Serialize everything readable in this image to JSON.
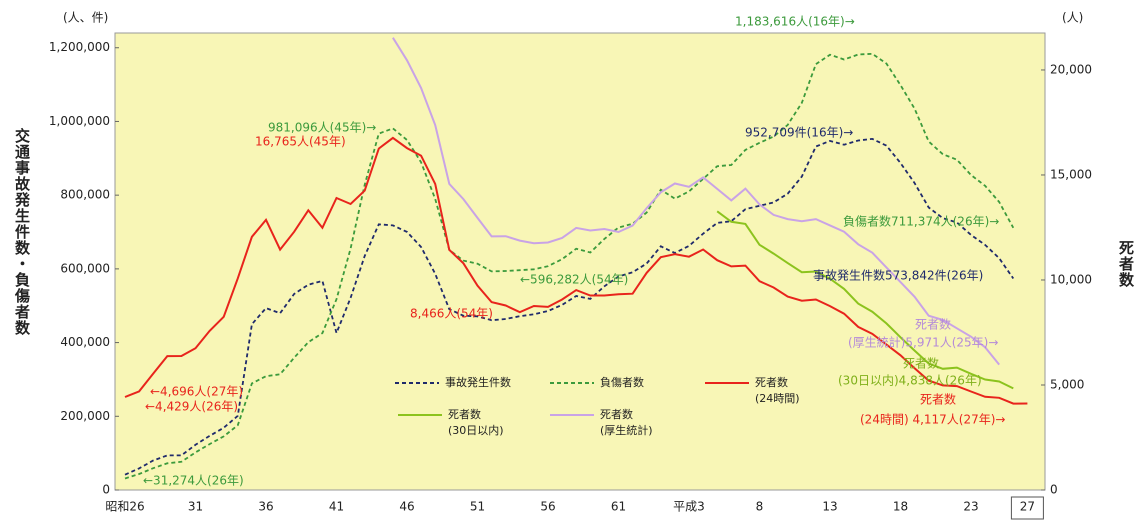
{
  "chart_data": {
    "type": "line",
    "y_unit_label": "(人、件)",
    "y2_unit_label": "(人)",
    "ylabel": "交通事故発生件数・負傷者数",
    "y2label": "死者数",
    "categories": [
      "昭和26",
      null,
      null,
      null,
      null,
      "31",
      null,
      null,
      null,
      null,
      "36",
      null,
      null,
      null,
      null,
      "41",
      null,
      null,
      null,
      null,
      "46",
      null,
      null,
      null,
      null,
      "51",
      null,
      null,
      null,
      null,
      "56",
      null,
      null,
      null,
      null,
      "61",
      null,
      null,
      null,
      null,
      "平成3",
      null,
      null,
      null,
      null,
      "8",
      null,
      null,
      null,
      null,
      "13",
      null,
      null,
      null,
      null,
      "18",
      null,
      null,
      null,
      null,
      "23",
      null,
      null,
      null,
      "27"
    ],
    "ylim": [
      0,
      1240000
    ],
    "yticks": [
      0,
      {
        "value": 200000,
        "label": "200,000"
      },
      {
        "value": 400000,
        "label": "400,000"
      },
      {
        "value": 600000,
        "label": "600,000"
      },
      {
        "value": 800000,
        "label": "800,000"
      },
      {
        "value": 1000000,
        "label": "1,000,000"
      },
      {
        "value": 1200000,
        "label": "1,200,000"
      }
    ],
    "y2lim": [
      0,
      21760
    ],
    "y2ticks": [
      0,
      {
        "value": 5000,
        "label": "5,000"
      },
      {
        "value": 10000,
        "label": "10,000"
      },
      {
        "value": 15000,
        "label": "15,000"
      },
      {
        "value": 20000,
        "label": "20,000"
      }
    ],
    "grid": false,
    "series": [
      {
        "name": "事故発生件数",
        "color": "#1f2a6b",
        "dash": true,
        "values": [
          41423,
          58487,
          80019,
          93869,
          93981,
          122691,
          146833,
          168799,
          201292,
          449917,
          493693,
          479825,
          531966,
          557183,
          567286,
          425944,
          521481,
          635056,
          720880,
          718080,
          700290,
          659283,
          586713,
          490452,
          472938,
          471041,
          460649,
          464037,
          471573,
          476677,
          485578,
          502261,
          526362,
          518642,
          552788,
          579190,
          590723,
          614481,
          661363,
          643097,
          662392,
          695345,
          724675,
          729461,
          761794,
          771085,
          780401,
          803882,
          850371,
          931950,
          947253,
          936950,
          948281,
          952709,
          934346,
          887267,
          832704,
          766394,
          737628,
          725924,
          692084,
          665157,
          629033,
          573842,
          null
        ]
      },
      {
        "name": "負傷者数",
        "color": "#3c9a3c",
        "dash": true,
        "values": [
          31274,
          43321,
          59280,
          72390,
          76501,
          102072,
          124530,
          145432,
          175951,
          289156,
          308697,
          313813,
          359089,
          401117,
          425666,
          517775,
          655377,
          828071,
          967000,
          981096,
          949689,
          889198,
          789948,
          651420,
          622467,
          613957,
          593211,
          594116,
          596282,
          598719,
          607346,
          626192,
          654822,
          644321,
          681346,
          712330,
          722179,
          752845,
          814832,
          790295,
          810245,
          844003,
          878633,
          881723,
          922677,
          942204,
          958925,
          990675,
          1050399,
          1155697,
          1181039,
          1168029,
          1181681,
          1183616,
          1157113,
          1098564,
          1034652,
          945703,
          911215,
          896297,
          854613,
          825396,
          781494,
          711374,
          null
        ]
      },
      {
        "name": "死者数",
        "sub": "(24時間)",
        "axis": "y2",
        "color": "#e8241c",
        "dash": false,
        "values": [
          4429,
          4696,
          5544,
          6374,
          6379,
          6751,
          7575,
          8248,
          10079,
          12055,
          12865,
          11445,
          12301,
          13318,
          12484,
          13904,
          13618,
          14256,
          16257,
          16765,
          16278,
          15918,
          14574,
          11432,
          10792,
          9734,
          8945,
          8783,
          8466,
          8760,
          8719,
          9073,
          9520,
          9262,
          9261,
          9317,
          9347,
          10344,
          11086,
          11227,
          11109,
          11452,
          10942,
          10649,
          10684,
          9943,
          9640,
          9211,
          9012,
          9073,
          8757,
          8396,
          7768,
          7436,
          6927,
          6415,
          5796,
          5209,
          4979,
          4948,
          4691,
          4438,
          4388,
          4113,
          4117
        ]
      },
      {
        "name": "死者数",
        "sub": "(30日以内)",
        "axis": "y2",
        "color": "#8cc31e",
        "dash": false,
        "values": [
          null,
          null,
          null,
          null,
          null,
          null,
          null,
          null,
          null,
          null,
          null,
          null,
          null,
          null,
          null,
          null,
          null,
          null,
          null,
          null,
          null,
          null,
          null,
          null,
          null,
          null,
          null,
          null,
          null,
          null,
          null,
          null,
          null,
          null,
          null,
          null,
          null,
          null,
          null,
          null,
          null,
          null,
          13269,
          12768,
          12670,
          11674,
          11254,
          10805,
          10372,
          10403,
          10060,
          9575,
          8877,
          8492,
          7931,
          7272,
          6639,
          6023,
          5772,
          5828,
          5535,
          5261,
          5165,
          4838,
          null
        ]
      },
      {
        "name": "死者数",
        "sub": "(厚生統計)",
        "axis": "y2",
        "color": "#c9a3e6",
        "dash": false,
        "values": [
          null,
          null,
          null,
          null,
          null,
          null,
          null,
          null,
          null,
          null,
          null,
          null,
          null,
          null,
          null,
          null,
          null,
          null,
          null,
          21535,
          20461,
          19139,
          17378,
          14574,
          13852,
          12954,
          12073,
          12084,
          11876,
          11752,
          11783,
          12001,
          12481,
          12354,
          12427,
          12283,
          12591,
          13422,
          14176,
          14595,
          14436,
          14886,
          14337,
          13791,
          14353,
          13600,
          13100,
          12900,
          12800,
          12900,
          12600,
          12300,
          11700,
          11300,
          10600,
          9900,
          9200,
          8300,
          8100,
          7700,
          7300,
          6800,
          5971,
          null,
          null
        ]
      }
    ],
    "annotations": [
      {
        "text": "1,183,616人(16年)→",
        "color": "#3c9a3c"
      },
      {
        "text": "981,096人(45年)→",
        "color": "#3c9a3c"
      },
      {
        "text": "16,765人(45年)",
        "color": "#e8241c"
      },
      {
        "text": "952,709件(16年)→",
        "color": "#1f2a6b"
      },
      {
        "text": "負傷者数711,374人(26年)→",
        "color": "#3c9a3c"
      },
      {
        "text": "←596,282人(54年)",
        "color": "#3c9a3c"
      },
      {
        "text": "事故発生件数573,842件(26年)",
        "color": "#1f2a6b"
      },
      {
        "text": "8,466人(54年)",
        "color": "#e8241c"
      },
      {
        "text": "死者数",
        "color": "#b58ad8"
      },
      {
        "text": "(厚生統計)5,971人(25年)→",
        "color": "#b58ad8"
      },
      {
        "text": "死者数",
        "color": "#7fb01a"
      },
      {
        "text": "(30日以内)4,838人(26年)",
        "color": "#7fb01a"
      },
      {
        "text": "←4,696人(27年)",
        "color": "#e8241c"
      },
      {
        "text": "←4,429人(26年)",
        "color": "#e8241c"
      },
      {
        "text": "死者数",
        "color": "#e8241c"
      },
      {
        "text": "(24時間) 4,117人(27年)→",
        "color": "#e8241c"
      },
      {
        "text": "←31,274人(26年)",
        "color": "#3c9a3c"
      }
    ]
  }
}
